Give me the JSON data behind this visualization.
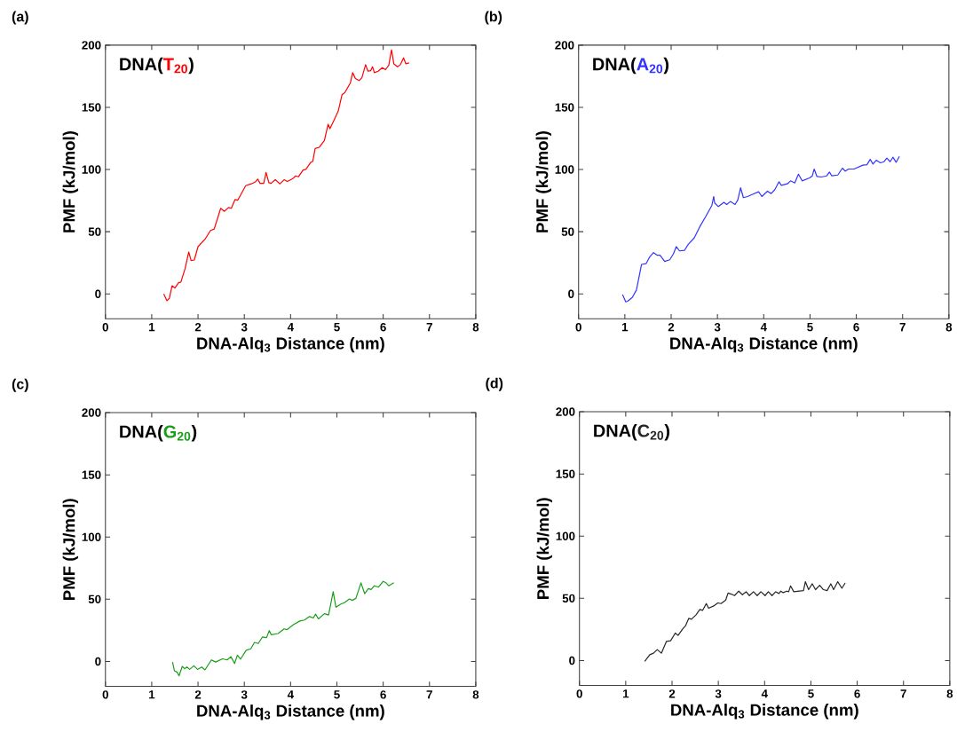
{
  "chart_data": [
    {
      "type": "line",
      "title": "(a)",
      "xlabel": "DNA-Alq$_{3}$ Distance (nm)",
      "ylabel": "PMF (kJ/mol)",
      "annotations": [
        "DNA(",
        "T$_{20}$",
        ")"
      ],
      "color": "#ff0000",
      "xlim": [
        0,
        8
      ],
      "ylim": [
        -20,
        200
      ],
      "xticks": [
        0,
        1,
        2,
        3,
        4,
        5,
        6,
        7,
        8
      ],
      "yticks": [
        0,
        50,
        100,
        150,
        200
      ],
      "x": [
        1.26,
        1.33,
        1.38,
        1.44,
        1.5,
        1.58,
        1.63,
        1.72,
        1.8,
        1.85,
        1.92,
        2.0,
        2.15,
        2.27,
        2.35,
        2.49,
        2.57,
        2.66,
        2.72,
        2.8,
        2.86,
        3.03,
        3.15,
        3.24,
        3.29,
        3.34,
        3.42,
        3.47,
        3.53,
        3.58,
        3.67,
        3.77,
        3.86,
        3.93,
        4.04,
        4.11,
        4.17,
        4.27,
        4.33,
        4.43,
        4.48,
        4.53,
        4.62,
        4.73,
        4.81,
        4.85,
        4.94,
        5.03,
        5.11,
        5.17,
        5.29,
        5.34,
        5.4,
        5.48,
        5.54,
        5.62,
        5.67,
        5.73,
        5.77,
        5.81,
        5.89,
        5.98,
        6.05,
        6.12,
        6.18,
        6.23,
        6.31,
        6.37,
        6.44,
        6.49,
        6.56
      ],
      "values": [
        0,
        -5.5,
        -3.6,
        6.6,
        4.7,
        9.0,
        9.5,
        20.2,
        33.7,
        26.8,
        27.3,
        38,
        43.9,
        51,
        52.2,
        68.8,
        66.4,
        69.5,
        68.8,
        75.9,
        75.4,
        87.0,
        88.5,
        90.1,
        92.3,
        88.9,
        88.9,
        97.7,
        89.4,
        88.9,
        91.8,
        88.5,
        91.8,
        90.4,
        92.5,
        94.9,
        94.2,
        99.6,
        100.1,
        105.5,
        106.7,
        116.9,
        117.9,
        123.3,
        136.4,
        132.8,
        139.9,
        147.1,
        160.1,
        161.8,
        169.6,
        177.9,
        173.2,
        171.5,
        173.8,
        184.3,
        179.1,
        179.5,
        182.6,
        177.9,
        179.1,
        181.9,
        180.3,
        183.8,
        196.2,
        185.0,
        182.6,
        184.3,
        189.8,
        185.0,
        185.7
      ]
    },
    {
      "type": "line",
      "title": "(b)",
      "xlabel": "DNA-Alq$_{3}$ Distance (nm)",
      "ylabel": "PMF (kJ/mol)",
      "annotations": [
        "DNA(",
        "A$_{20}$",
        ")"
      ],
      "color": "#3333ff",
      "xlim": [
        0,
        8
      ],
      "ylim": [
        -20,
        200
      ],
      "xticks": [
        0,
        1,
        2,
        3,
        4,
        5,
        6,
        7,
        8
      ],
      "yticks": [
        0,
        50,
        100,
        150,
        200
      ],
      "x": [
        0.95,
        1.02,
        1.06,
        1.16,
        1.25,
        1.36,
        1.46,
        1.54,
        1.62,
        1.7,
        1.76,
        1.86,
        1.97,
        2.05,
        2.11,
        2.18,
        2.29,
        2.37,
        2.5,
        2.62,
        2.75,
        2.88,
        2.92,
        2.94,
        3.02,
        3.14,
        3.2,
        3.28,
        3.38,
        3.44,
        3.5,
        3.56,
        3.65,
        3.77,
        3.89,
        3.96,
        4.08,
        4.16,
        4.24,
        4.33,
        4.38,
        4.51,
        4.58,
        4.67,
        4.75,
        4.83,
        4.99,
        5.05,
        5.09,
        5.15,
        5.24,
        5.36,
        5.42,
        5.47,
        5.6,
        5.7,
        5.76,
        5.83,
        5.95,
        6.14,
        6.23,
        6.3,
        6.36,
        6.43,
        6.52,
        6.6,
        6.66,
        6.73,
        6.79,
        6.86,
        6.93
      ],
      "values": [
        -0.5,
        -6.4,
        -5.9,
        -2.8,
        3.1,
        23.7,
        24.4,
        29.9,
        33.2,
        31.1,
        31.1,
        26.1,
        27.5,
        32.3,
        38.0,
        34.6,
        35.1,
        39.9,
        45.1,
        54.1,
        62.4,
        71.2,
        78.3,
        73.1,
        70.2,
        73.6,
        71.9,
        74.3,
        71.9,
        75.5,
        85.4,
        77.4,
        78.3,
        80.2,
        82.1,
        78.3,
        82.6,
        80.7,
        83.8,
        90.2,
        87.3,
        88.5,
        90.9,
        89.2,
        96.3,
        90.9,
        93.3,
        94.9,
        100.4,
        94.4,
        94.0,
        94.9,
        98.0,
        94.9,
        95.6,
        101.1,
        98.7,
        100.4,
        100.4,
        103.5,
        103.9,
        108.2,
        104.4,
        107.5,
        105.4,
        106.3,
        109.2,
        106.3,
        109.9,
        105.8,
        110.6
      ]
    },
    {
      "type": "line",
      "title": "(c)",
      "xlabel": "DNA-Alq$_{3}$ Distance (nm)",
      "ylabel": "PMF (kJ/mol)",
      "annotations": [
        "DNA(",
        "G$_{20}$",
        ")"
      ],
      "color": "#1a9e1a",
      "xlim": [
        0,
        8
      ],
      "ylim": [
        -20,
        200
      ],
      "xticks": [
        0,
        1,
        2,
        3,
        4,
        5,
        6,
        7,
        8
      ],
      "yticks": [
        0,
        50,
        100,
        150,
        200
      ],
      "x": [
        1.45,
        1.49,
        1.55,
        1.59,
        1.66,
        1.71,
        1.76,
        1.82,
        1.91,
        1.99,
        2.08,
        2.15,
        2.29,
        2.38,
        2.53,
        2.63,
        2.71,
        2.79,
        2.85,
        2.92,
        3.04,
        3.14,
        3.22,
        3.3,
        3.39,
        3.48,
        3.54,
        3.58,
        3.73,
        3.86,
        3.92,
        4.06,
        4.2,
        4.3,
        4.41,
        4.49,
        4.54,
        4.6,
        4.73,
        4.82,
        4.92,
        4.98,
        5.08,
        5.17,
        5.27,
        5.33,
        5.41,
        5.52,
        5.6,
        5.68,
        5.74,
        5.81,
        5.9,
        6.0,
        6.06,
        6.12,
        6.23
      ],
      "values": [
        -0.5,
        -7.5,
        -8.7,
        -11.6,
        -4.0,
        -5.9,
        -4.5,
        -6.4,
        -3.5,
        -6.4,
        -4.5,
        -6.8,
        1.2,
        -0.5,
        2.1,
        1.2,
        3.8,
        -1.7,
        5.0,
        1.9,
        9.0,
        10.1,
        15.3,
        14.4,
        19.6,
        19.1,
        24.8,
        21.5,
        22.4,
        26.2,
        25.5,
        29.5,
        32.5,
        33.3,
        36.1,
        34.9,
        38.0,
        34.2,
        38.4,
        37.3,
        56.1,
        43.6,
        46.0,
        47.4,
        50.2,
        49.1,
        50.7,
        63.2,
        54.5,
        58.5,
        57.8,
        60.8,
        59.7,
        64.4,
        63.2,
        60.8,
        63.2
      ]
    },
    {
      "type": "line",
      "title": "(d)",
      "xlabel": "DNA-Alq$_{3}$ Distance (nm)",
      "ylabel": "PMF (kJ/mol)",
      "annotations": [
        "DNA(",
        "C$_{20}$",
        ")"
      ],
      "color": "#262626",
      "xlim": [
        0,
        8
      ],
      "ylim": [
        -20,
        200
      ],
      "xticks": [
        0,
        1,
        2,
        3,
        4,
        5,
        6,
        7,
        8
      ],
      "yticks": [
        0,
        50,
        100,
        150,
        200
      ],
      "x": [
        1.41,
        1.52,
        1.6,
        1.68,
        1.77,
        1.88,
        1.97,
        2.07,
        2.13,
        2.23,
        2.29,
        2.36,
        2.42,
        2.52,
        2.6,
        2.66,
        2.74,
        2.79,
        2.9,
        2.99,
        3.06,
        3.16,
        3.21,
        3.28,
        3.35,
        3.44,
        3.52,
        3.6,
        3.67,
        3.76,
        3.84,
        3.92,
        4.01,
        4.08,
        4.16,
        4.24,
        4.31,
        4.35,
        4.4,
        4.48,
        4.52,
        4.56,
        4.63,
        4.84,
        4.88,
        4.95,
        5.03,
        5.1,
        5.19,
        5.27,
        5.35,
        5.43,
        5.49,
        5.58,
        5.67,
        5.74
      ],
      "values": [
        -0.7,
        4.7,
        5.9,
        8.8,
        5.9,
        15.4,
        15.9,
        22.1,
        20.2,
        25.4,
        27.8,
        33.9,
        33.2,
        36.8,
        41.1,
        40.3,
        45.8,
        42.0,
        43.9,
        46.3,
        45.8,
        48.6,
        54.3,
        53.4,
        52.2,
        55.8,
        52.9,
        55.3,
        52.2,
        55.3,
        52.2,
        55.3,
        52.2,
        55.3,
        52.2,
        55.3,
        53.9,
        55.8,
        54.6,
        55.8,
        55.3,
        60.0,
        55.3,
        56.2,
        63.4,
        57.0,
        61.7,
        57.0,
        60.5,
        57.0,
        56.2,
        61.7,
        57.0,
        63.4,
        58.1,
        62.4
      ]
    }
  ]
}
